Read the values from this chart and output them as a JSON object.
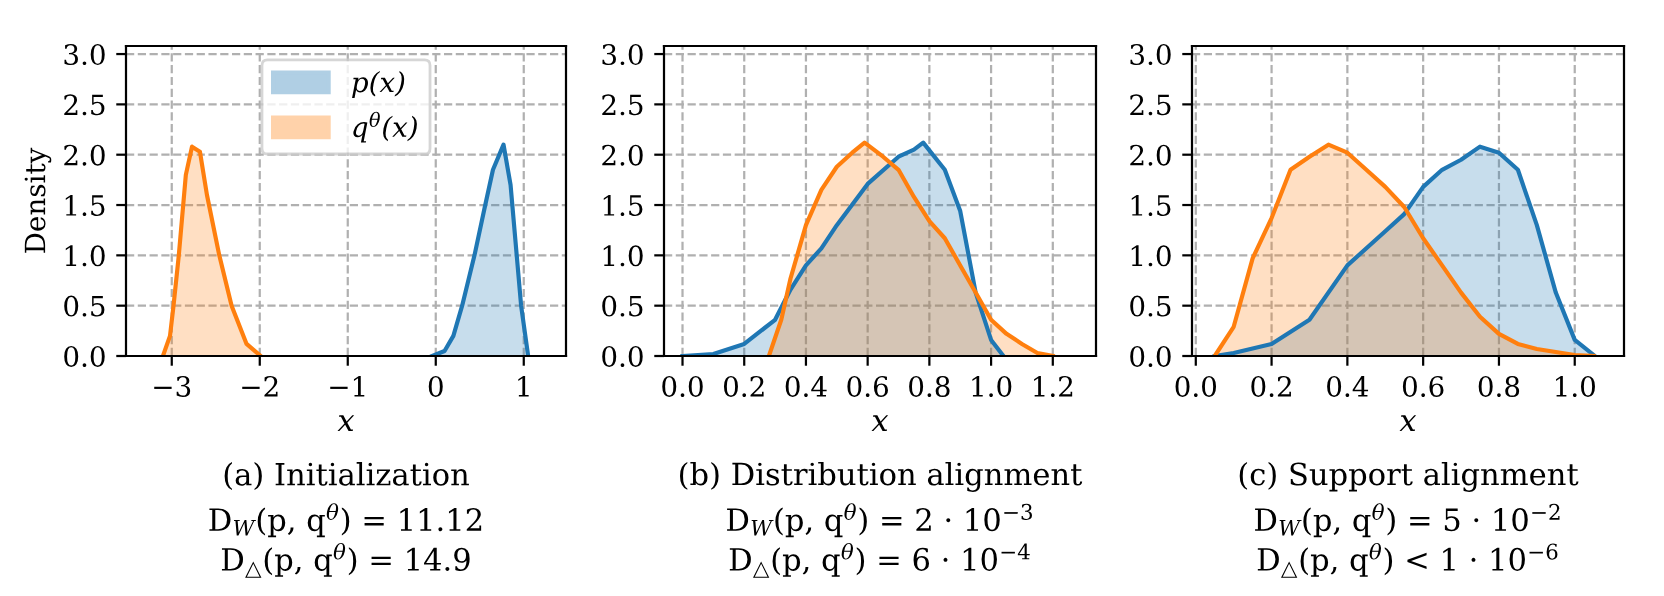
{
  "chart_data": [
    {
      "type": "area",
      "title": "(a) Initialization",
      "xlabel": "x",
      "ylabel": "Density",
      "annotations": [
        "D$_{W}$(p, q$^{θ}$) = 11.12",
        "D$_{△}$(p, q$^{θ}$) = 14.9"
      ],
      "xlim": [
        -3.52,
        1.48
      ],
      "xticks": [
        {
          "value": -3,
          "label": "−3"
        },
        {
          "value": -2,
          "label": "−2"
        },
        {
          "value": -1,
          "label": "−1"
        },
        0,
        1
      ],
      "ylim": [
        0,
        3.08
      ],
      "yticks": [
        {
          "value": 0,
          "label": "0.0"
        },
        0.5,
        {
          "value": 1,
          "label": "1.0"
        },
        1.5,
        {
          "value": 2,
          "label": "2.0"
        },
        2.5,
        {
          "value": 3,
          "label": "3.0"
        }
      ],
      "grid": true,
      "legend": "top center",
      "series": [
        {
          "name": "p(x)",
          "color": "#1f77b4",
          "x": [
            -0.04,
            0.1,
            0.2,
            0.3,
            0.44,
            0.55,
            0.65,
            0.77,
            0.85,
            0.92,
            0.97,
            1.05
          ],
          "values": [
            0,
            0.05,
            0.2,
            0.5,
            1.0,
            1.45,
            1.85,
            2.1,
            1.7,
            1.0,
            0.5,
            0
          ]
        },
        {
          "name": "q$^{θ}$(x)",
          "color": "#ff7f0e",
          "x": [
            -3.1,
            -3.02,
            -2.98,
            -2.92,
            -2.84,
            -2.77,
            -2.68,
            -2.6,
            -2.46,
            -2.32,
            -2.15,
            -1.99
          ],
          "values": [
            0,
            0.2,
            0.5,
            1.0,
            1.8,
            2.08,
            2.03,
            1.6,
            1.0,
            0.5,
            0.12,
            0
          ]
        }
      ]
    },
    {
      "type": "area",
      "title": "(b) Distribution alignment",
      "xlabel": "x",
      "annotations": [
        "D$_{W}$(p, q$^{θ}$) = 2 · 10$^{−3}$",
        "D$_{△}$(p, q$^{θ}$) = 6 · 10$^{−4}$"
      ],
      "xlim": [
        -0.06,
        1.34
      ],
      "xticks": [
        {
          "value": 0,
          "label": "0.0"
        },
        0.2,
        0.4,
        0.6,
        0.8,
        {
          "value": 1,
          "label": "1.0"
        },
        1.2
      ],
      "ylim": [
        0,
        3.08
      ],
      "yticks": [
        {
          "value": 0,
          "label": "0.0"
        },
        0.5,
        {
          "value": 1,
          "label": "1.0"
        },
        1.5,
        {
          "value": 2,
          "label": "2.0"
        },
        2.5,
        {
          "value": 3,
          "label": "3.0"
        }
      ],
      "grid": true,
      "series": [
        {
          "color": "#1f77b4",
          "x": [
            0.0,
            0.1,
            0.2,
            0.3,
            0.35,
            0.4,
            0.45,
            0.5,
            0.6,
            0.7,
            0.75,
            0.78,
            0.85,
            0.9,
            0.95,
            1.0,
            1.04
          ],
          "values": [
            0,
            0.02,
            0.12,
            0.36,
            0.66,
            0.9,
            1.07,
            1.3,
            1.71,
            1.98,
            2.05,
            2.12,
            1.85,
            1.44,
            0.63,
            0.16,
            0
          ]
        },
        {
          "color": "#ff7f0e",
          "x": [
            0.28,
            0.32,
            0.35,
            0.4,
            0.45,
            0.5,
            0.55,
            0.59,
            0.65,
            0.7,
            0.75,
            0.8,
            0.85,
            0.9,
            0.95,
            1.0,
            1.05,
            1.1,
            1.15,
            1.2
          ],
          "values": [
            0,
            0.36,
            0.77,
            1.3,
            1.65,
            1.88,
            2.02,
            2.12,
            1.98,
            1.85,
            1.58,
            1.34,
            1.17,
            0.9,
            0.63,
            0.36,
            0.22,
            0.12,
            0.03,
            0
          ]
        }
      ]
    },
    {
      "type": "area",
      "title": "(c) Support alignment",
      "xlabel": "x",
      "annotations": [
        "D$_{W}$(p, q$^{θ}$) = 5 · 10$^{−2}$",
        "D$_{△}$(p, q$^{θ}$) < 1 · 10$^{−6}$"
      ],
      "xlim": [
        -0.01,
        1.13
      ],
      "xticks": [
        {
          "value": 0,
          "label": "0.0"
        },
        0.2,
        0.4,
        0.6,
        0.8,
        {
          "value": 1,
          "label": "1.0"
        }
      ],
      "ylim": [
        0,
        3.08
      ],
      "yticks": [
        {
          "value": 0,
          "label": "0.0"
        },
        0.5,
        {
          "value": 1,
          "label": "1.0"
        },
        1.5,
        {
          "value": 2,
          "label": "2.0"
        },
        2.5,
        {
          "value": 3,
          "label": "3.0"
        }
      ],
      "grid": true,
      "series": [
        {
          "color": "#1f77b4",
          "x": [
            0.05,
            0.1,
            0.2,
            0.3,
            0.4,
            0.5,
            0.55,
            0.6,
            0.65,
            0.7,
            0.75,
            0.8,
            0.85,
            0.9,
            0.95,
            1.0,
            1.05
          ],
          "values": [
            0,
            0.03,
            0.12,
            0.36,
            0.9,
            1.24,
            1.41,
            1.68,
            1.85,
            1.95,
            2.08,
            2.02,
            1.85,
            1.3,
            0.63,
            0.16,
            0.01
          ]
        },
        {
          "color": "#ff7f0e",
          "x": [
            0.05,
            0.1,
            0.15,
            0.2,
            0.25,
            0.3,
            0.35,
            0.4,
            0.45,
            0.5,
            0.55,
            0.6,
            0.65,
            0.7,
            0.75,
            0.8,
            0.85,
            0.9,
            1.0,
            1.05
          ],
          "values": [
            0,
            0.29,
            0.97,
            1.37,
            1.85,
            1.98,
            2.1,
            2.02,
            1.85,
            1.68,
            1.48,
            1.17,
            0.9,
            0.63,
            0.39,
            0.22,
            0.12,
            0.07,
            0.01,
            0
          ]
        }
      ]
    }
  ]
}
